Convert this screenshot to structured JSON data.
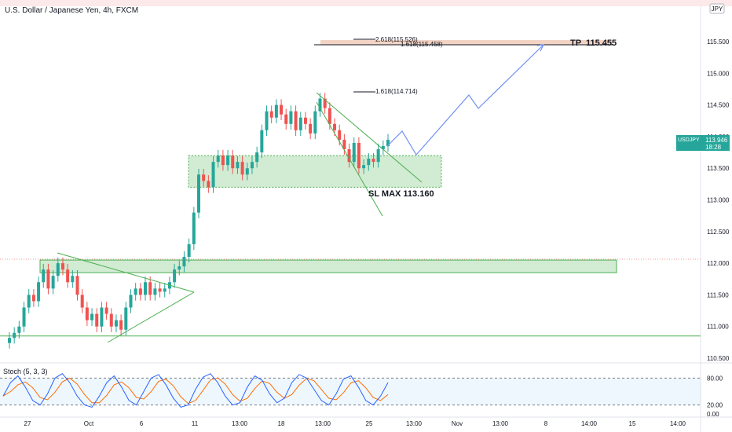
{
  "header": {
    "title": "U.S. Dollar / Japanese Yen, 4h, FXCM",
    "currency_badge": "JPY"
  },
  "price_panel": {
    "y_ticks": [
      "115.500",
      "115.000",
      "114.500",
      "114.000",
      "113.500",
      "113.000",
      "112.500",
      "112.000",
      "111.500",
      "111.000",
      "110.500"
    ],
    "x_ticks": [
      "27",
      "Oct",
      "6",
      "11",
      "13:00",
      "18",
      "13:00",
      "25",
      "13:00",
      "Nov",
      "13:00",
      "8",
      "14:00",
      "15",
      "14:00"
    ],
    "last_price_label": {
      "symbol": "USDJPY",
      "price": "113.946",
      "countdown": "18:28"
    },
    "colors": {
      "up": "#26a69a",
      "down": "#ef5350",
      "zone": "#4caf50",
      "path": "#6f8ff5",
      "tp_zone": "#f0c9b5"
    }
  },
  "annotations": {
    "fib_261": "2.618(115.526)",
    "fib_1618_top": "1.618(115.458)",
    "fib_1618_mid": "1.618(114.714)",
    "tp_label": "TP  115.455",
    "sl_label": "SL MAX 113.160"
  },
  "stoch_panel": {
    "title": "Stoch (5, 3, 3)",
    "y_ticks": [
      "80.00",
      "20.00",
      "0.00"
    ]
  },
  "chart_data": {
    "type": "candlestick",
    "title": "U.S. Dollar / Japanese Yen, 4h, FXCM",
    "y_range": [
      110.4,
      116.1
    ],
    "close_path": [
      110.82,
      110.9,
      111.0,
      111.3,
      111.5,
      111.4,
      111.7,
      111.9,
      111.6,
      111.8,
      112.0,
      111.9,
      111.7,
      111.8,
      111.5,
      111.3,
      111.1,
      111.2,
      111.0,
      111.3,
      111.2,
      111.0,
      111.1,
      110.95,
      111.3,
      111.5,
      111.6,
      111.5,
      111.7,
      111.5,
      111.6,
      111.55,
      111.6,
      111.7,
      111.9,
      111.95,
      112.1,
      112.3,
      112.8,
      113.4,
      113.3,
      113.2,
      113.6,
      113.7,
      113.55,
      113.7,
      113.5,
      113.6,
      113.4,
      113.5,
      113.6,
      113.75,
      114.1,
      114.4,
      114.3,
      114.5,
      114.35,
      114.2,
      114.4,
      114.1,
      114.3,
      114.2,
      114.05,
      114.4,
      114.6,
      114.45,
      114.2,
      114.1,
      113.95,
      113.8,
      113.6,
      113.9,
      113.5,
      113.55,
      113.65,
      113.6,
      113.8,
      113.85,
      113.95
    ],
    "last_price": 113.946,
    "support_zones": [
      [
        113.2,
        113.7
      ],
      [
        111.85,
        112.05
      ]
    ],
    "support_line": 110.85,
    "tp_zone": [
      115.455,
      115.526
    ],
    "fib_levels": [
      {
        "label": "2.618",
        "value": 115.526
      },
      {
        "label": "1.618",
        "value": 115.458
      },
      {
        "label": "1.618",
        "value": 114.714
      }
    ],
    "tp": 115.455,
    "sl": 113.16,
    "projected_path": [
      113.95,
      114.1,
      113.7,
      114.7,
      114.45,
      115.455
    ],
    "stochastic": {
      "params": "5, 3, 3",
      "levels": [
        80,
        20
      ],
      "k": [
        40,
        70,
        85,
        60,
        30,
        20,
        45,
        80,
        90,
        70,
        40,
        20,
        15,
        40,
        70,
        85,
        60,
        30,
        20,
        50,
        80,
        88,
        65,
        35,
        15,
        20,
        55,
        82,
        90,
        70,
        40,
        20,
        25,
        60,
        85,
        75,
        45,
        25,
        35,
        70,
        88,
        80,
        55,
        30,
        20,
        45,
        78,
        85,
        60,
        30,
        20,
        40,
        70
      ]
    }
  }
}
